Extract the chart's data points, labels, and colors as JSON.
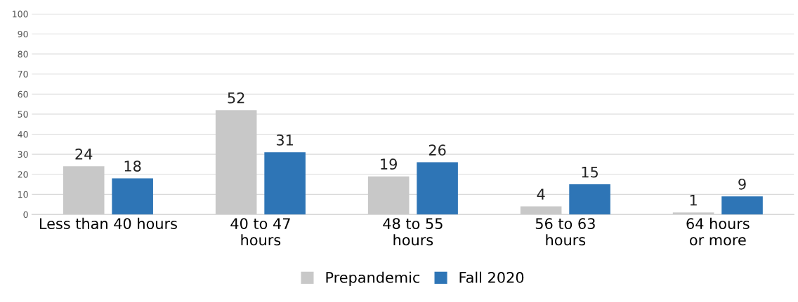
{
  "chart_data": {
    "type": "bar",
    "categories": [
      "Less than 40 hours",
      "40 to 47\nhours",
      "48 to 55\nhours",
      "56 to 63\nhours",
      "64 hours\nor more"
    ],
    "series": [
      {
        "name": "Prepandemic",
        "color": "#c8c8c8",
        "values": [
          24,
          52,
          19,
          4,
          1
        ]
      },
      {
        "name": "Fall 2020",
        "color": "#2e75b6",
        "values": [
          18,
          31,
          26,
          15,
          9
        ]
      }
    ],
    "ylim": [
      0,
      100
    ],
    "yticks": [
      0,
      10,
      20,
      30,
      40,
      50,
      60,
      70,
      80,
      90,
      100
    ],
    "grid": "y",
    "legend": "bottom",
    "data_labels": true
  }
}
